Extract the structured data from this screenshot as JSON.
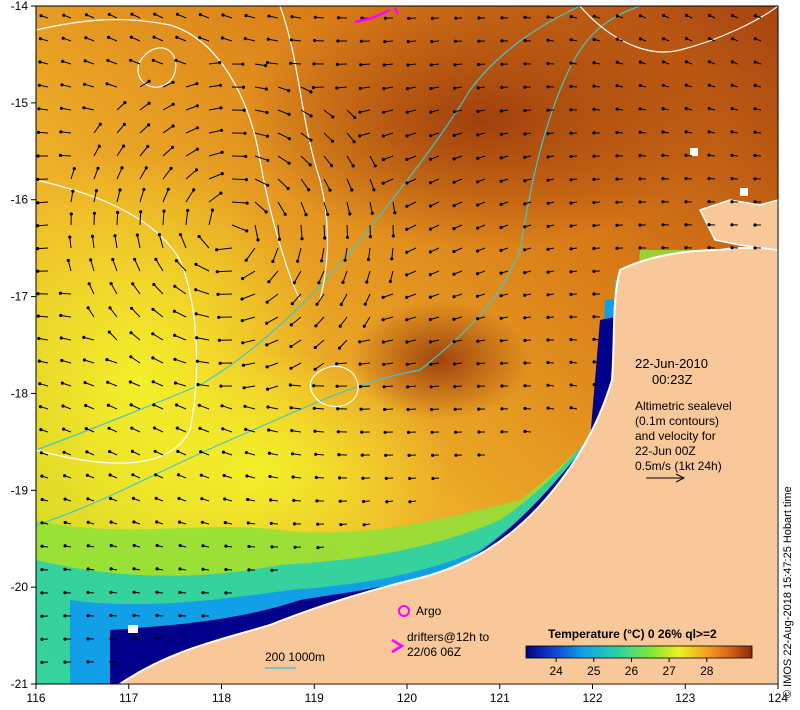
{
  "map": {
    "lon_ticks": [
      "116",
      "117",
      "118",
      "119",
      "120",
      "121",
      "122",
      "123",
      "124"
    ],
    "lat_ticks": [
      "-14",
      "-15",
      "-16",
      "-17",
      "-18",
      "-19",
      "-20",
      "-21"
    ],
    "colors": {
      "land": "#f8c79a",
      "coast_shallow": "#00008b",
      "contour": "#ffffff",
      "bathymetry": "#44c7c7",
      "arrows": "#000000",
      "drifter": "#ff00ff"
    }
  },
  "annotation": {
    "date": "22-Jun-2010",
    "time": "00:23Z",
    "lines": [
      "Altimetric sealevel",
      "(0.1m contours)",
      "and velocity for",
      "22-Jun 00Z",
      "0.5m/s (1kt 24h)"
    ]
  },
  "legend": {
    "argo_label": "Argo",
    "drifters_line1": "drifters@12h to",
    "drifters_line2": "22/06 06Z",
    "bathy_label": "200  1000m"
  },
  "colorbar": {
    "title": "Temperature (°C) 0 26% ql>=2",
    "ticks": [
      "24",
      "25",
      "26",
      "27",
      "28"
    ],
    "tick_values": [
      24,
      25,
      26,
      27,
      28
    ],
    "range": [
      23.2,
      29.2
    ]
  },
  "credit": "© IMOS 22-Aug-2018 15:47:25 Hobart time"
}
